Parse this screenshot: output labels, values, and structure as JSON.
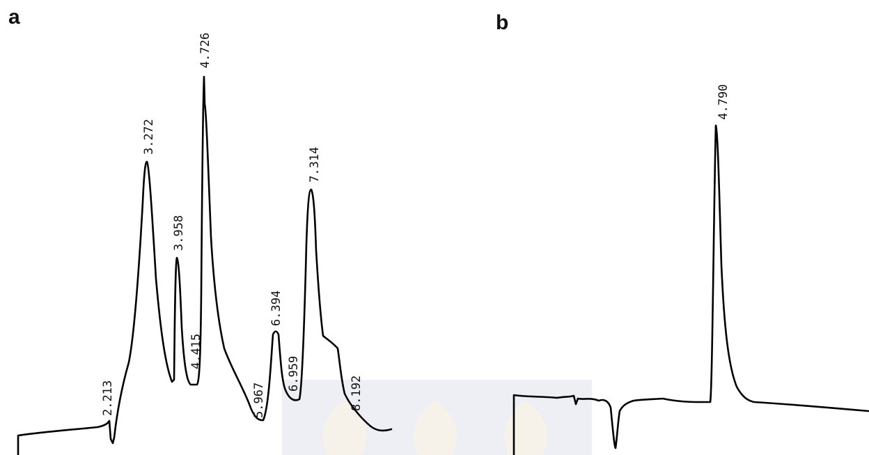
{
  "chart_data": [
    {
      "type": "line",
      "panel": "a",
      "peaks": [
        {
          "rt": 2.213,
          "label": "2.213",
          "intensity": 0.05
        },
        {
          "rt": 3.272,
          "label": "3.272",
          "intensity": 0.72
        },
        {
          "rt": 3.958,
          "label": "3.958",
          "intensity": 0.48
        },
        {
          "rt": 4.415,
          "label": "4.415",
          "intensity": 0.15
        },
        {
          "rt": 4.726,
          "label": "4.726",
          "intensity": 1.0
        },
        {
          "rt": 5.967,
          "label": "5.967",
          "intensity": 0.06
        },
        {
          "rt": 6.394,
          "label": "6.394",
          "intensity": 0.29
        },
        {
          "rt": 6.959,
          "label": "6.959",
          "intensity": 0.13
        },
        {
          "rt": 7.314,
          "label": "7.314",
          "intensity": 0.65
        },
        {
          "rt": 8.192,
          "label": "8.192",
          "intensity": 0.18
        }
      ]
    },
    {
      "type": "line",
      "panel": "b",
      "peaks": [
        {
          "rt": 4.79,
          "label": "4.790",
          "intensity": 1.0
        }
      ]
    }
  ],
  "colors": {
    "trace": "#000000",
    "text": "#111111",
    "watermark": "#dfe3ee"
  }
}
